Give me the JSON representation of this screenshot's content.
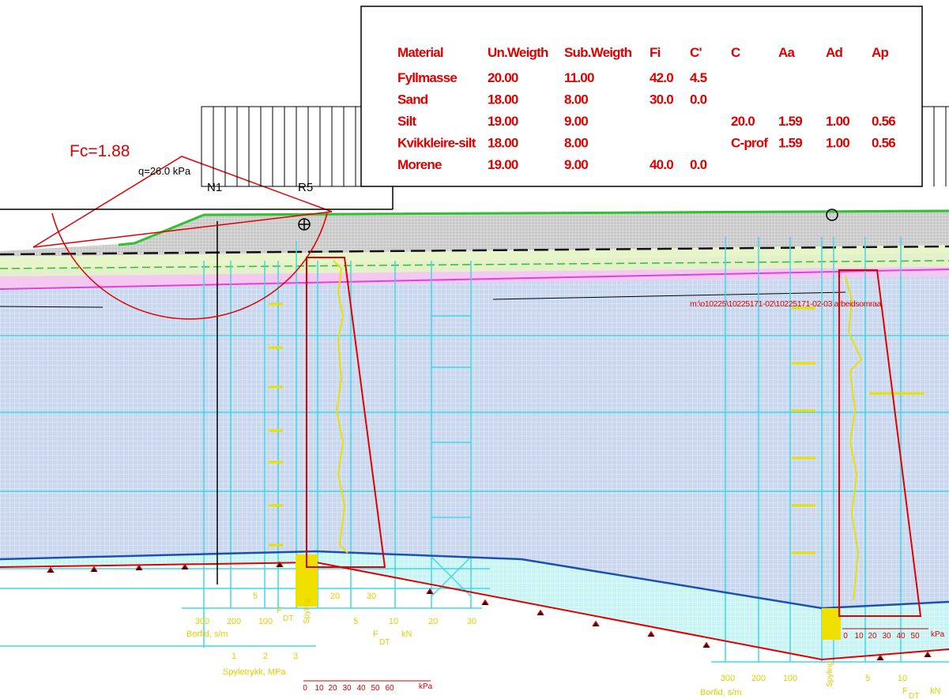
{
  "table": {
    "headers": [
      "Material",
      "Un.Weigth",
      "Sub.Weigth",
      "Fi",
      "C'",
      "C",
      "Aa",
      "Ad",
      "Ap"
    ],
    "rows": [
      {
        "material": "Fyllmasse",
        "un_weight": "20.00",
        "sub_weight": "11.00",
        "fi": "42.0",
        "c_prime": "4.5"
      },
      {
        "material": "Sand",
        "un_weight": "18.00",
        "sub_weight": "8.00",
        "fi": "30.0",
        "c_prime": "0.0"
      },
      {
        "material": "Silt",
        "un_weight": "19.00",
        "sub_weight": "9.00",
        "c": "20.0",
        "aa": "1.59",
        "ad": "1.00",
        "ap": "0.56"
      },
      {
        "material": "Kvikkleire-silt",
        "un_weight": "18.00",
        "sub_weight": "8.00",
        "c": "C-prof",
        "aa": "1.59",
        "ad": "1.00",
        "ap": "0.56"
      },
      {
        "material": "Morene",
        "un_weight": "19.00",
        "sub_weight": "9.00",
        "fi": "40.0",
        "c_prime": "0.0"
      }
    ]
  },
  "section": {
    "safety_factor": "Fc=1.88",
    "load": "q=26.0 kPa",
    "borehole_left": "N1",
    "borehole_mid": "R5",
    "file_path": "m:\\o10225\\10225171-02\\10225171-02-03 arbeidsomraa"
  },
  "left_sounding": {
    "borfid_ticks": [
      "300",
      "200",
      "100"
    ],
    "borfid_label": "Borfid, s/m",
    "upper_ticks": [
      "5",
      "20",
      "30"
    ],
    "force_ticks": [
      "5",
      "10",
      "20",
      "30"
    ],
    "force_symbol_upper": "F",
    "force_subscript_upper": "DT",
    "force_symbol": "F",
    "force_subscript": "DT",
    "force_unit": "kN",
    "mode_label": "Spyling",
    "pressure_ticks": [
      "1",
      "2",
      "3"
    ],
    "pressure_label": "Spyletrykk, MPa",
    "strength_ticks": [
      "0",
      "10",
      "20",
      "30",
      "40",
      "50",
      "60"
    ],
    "strength_unit": "kPa"
  },
  "right_sounding": {
    "strength_ticks": [
      "0",
      "10",
      "20",
      "30",
      "40",
      "50"
    ],
    "strength_unit": "kPa",
    "borfid_ticks": [
      "300",
      "200",
      "100"
    ],
    "borfid_label": "Borfid, s/m",
    "mode_label": "Spyling",
    "force_ticks": [
      "5",
      "10"
    ],
    "force_symbol": "F",
    "force_subscript": "DT",
    "force_unit": "kN"
  }
}
